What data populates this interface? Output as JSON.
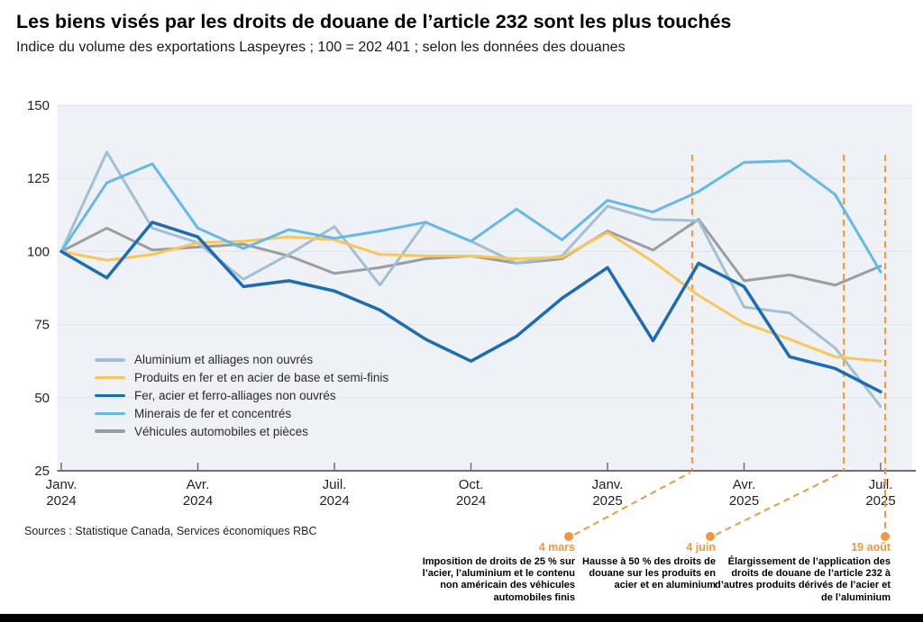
{
  "header": {
    "title": "Les biens visés par les droits de douane de l’article 232 sont les plus touchés",
    "subtitle": "Indice du volume des exportations Laspeyres ; 100 = 202 401 ; selon les données des douanes"
  },
  "source": "Sources : Statistique Canada, Services économiques RBC",
  "colors": {
    "accent_orange": "#f0983d",
    "axis": "#6d6e71",
    "grid": "#dee4eb",
    "plot_background": "#eef1f5"
  },
  "chart_data": {
    "type": "line",
    "title": "Les biens visés par les droits de douane de l’article 232 sont les plus touchés",
    "subtitle": "Indice du volume des exportations Laspeyres ; 100 = 202 401 ; selon les données des douanes",
    "categories": [
      "Janv. 2024",
      "Févr. 2024",
      "Mars 2024",
      "Avr. 2024",
      "Mai 2024",
      "Juin 2024",
      "Juil. 2024",
      "Août 2024",
      "Sept. 2024",
      "Oct. 2024",
      "Nov. 2024",
      "Déc. 2024",
      "Janv. 2025",
      "Févr. 2025",
      "Mars 2025",
      "Avr. 2025",
      "Mai 2025",
      "Juin 2025",
      "Juil. 2025"
    ],
    "series": [
      {
        "name": "Aluminium et alliages non ouvrés",
        "color": "#a3bfd3",
        "values": [
          100,
          134,
          108,
          103,
          90.5,
          99,
          108.5,
          88.5,
          110,
          103.5,
          96,
          98.5,
          115.5,
          111,
          110.5,
          81,
          79,
          67,
          47
        ]
      },
      {
        "name": "Produits en fer et en acier de base et semi-finis",
        "color": "#f9c65a",
        "values": [
          100,
          97,
          99,
          103,
          103.5,
          105,
          104,
          99,
          98.5,
          98.5,
          97.5,
          98,
          106.5,
          96.5,
          85,
          75.5,
          70,
          64,
          62.5
        ]
      },
      {
        "name": "Fer, acier et ferro-alliages non ouvrés",
        "color": "#1b6cb4",
        "values": [
          100,
          91,
          110,
          105,
          88,
          90,
          86.5,
          80,
          70,
          62.5,
          71,
          84,
          94.5,
          69.5,
          96,
          88,
          64,
          60,
          52
        ]
      },
      {
        "name": "Minerais de fer et concentrés",
        "color": "#64b9e9",
        "values": [
          100,
          123.5,
          130,
          108,
          101,
          107.5,
          104.5,
          107,
          110,
          103.5,
          114.5,
          104,
          117.5,
          113.5,
          120.5,
          130.5,
          131,
          119.5,
          93
        ]
      },
      {
        "name": "Véhicules automobiles et pièces",
        "color": "#9b9da0",
        "values": [
          100,
          108,
          100.5,
          101.5,
          102.5,
          98.5,
          92.5,
          94.5,
          97.5,
          98.5,
          96,
          97.5,
          107,
          100.5,
          111,
          90,
          92,
          88.5,
          95
        ]
      }
    ],
    "ylim": [
      25,
      150
    ],
    "yticks": [
      25,
      50,
      75,
      100,
      125,
      150
    ],
    "x_tick_labels": [
      {
        "index": 0,
        "line1": "Janv.",
        "line2": "2024"
      },
      {
        "index": 3,
        "line1": "Avr.",
        "line2": "2024"
      },
      {
        "index": 6,
        "line1": "Juil.",
        "line2": "2024"
      },
      {
        "index": 9,
        "line1": "Oct.",
        "line2": "2024"
      },
      {
        "index": 12,
        "line1": "Janv.",
        "line2": "2025"
      },
      {
        "index": 15,
        "line1": "Avr.",
        "line2": "2025"
      },
      {
        "index": 18,
        "line1": "Juil.",
        "line2": "2025"
      }
    ],
    "grid": "horizontal",
    "legend_position": "inside-bottom-left",
    "annotations": {
      "events": [
        {
          "date": "4 mars",
          "month_index": 13.86,
          "text": "Imposition de droits de 25 % sur l’acier, l’aluminium et le contenu non américain des véhicules automobiles finis"
        },
        {
          "date": "4 juin",
          "month_index": 17.19,
          "text": "Hausse à 50 % des droits de douane sur les produits en acier et en aluminium"
        },
        {
          "date": "19 août",
          "month_index": 18.1,
          "text": "Élargissement de l’application des droits de douane de l’article 232 à d’autres produits dérivés de l’acier et de l’aluminium"
        }
      ]
    }
  }
}
